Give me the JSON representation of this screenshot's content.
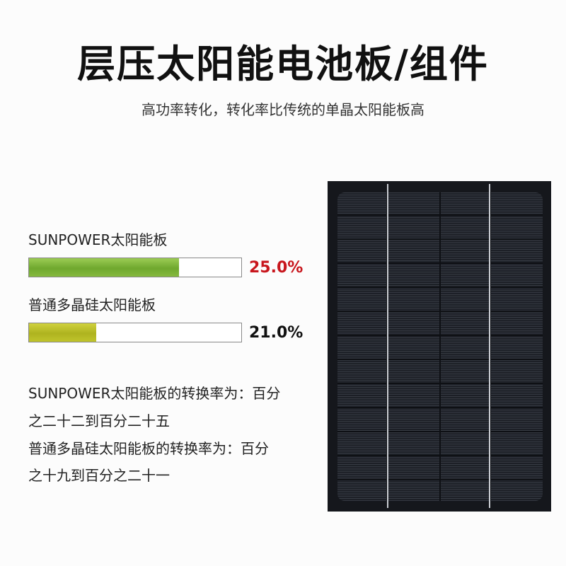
{
  "header": {
    "title": "层压太阳能电池板/组件",
    "subtitle": "高功率转化，转化率比传统的单晶太阳能板高"
  },
  "comparison": [
    {
      "label": "SUNPOWER太阳能板",
      "value": "25.0%"
    },
    {
      "label": "普通多晶硅太阳能板",
      "value": "21.0%"
    }
  ],
  "description": {
    "lines": [
      "SUNPOWER太阳能板的转换率为：百分",
      "之二十二到百分二十五",
      "普通多晶硅太阳能板的转换率为：百分",
      "之十九到百分之二十一"
    ]
  }
}
